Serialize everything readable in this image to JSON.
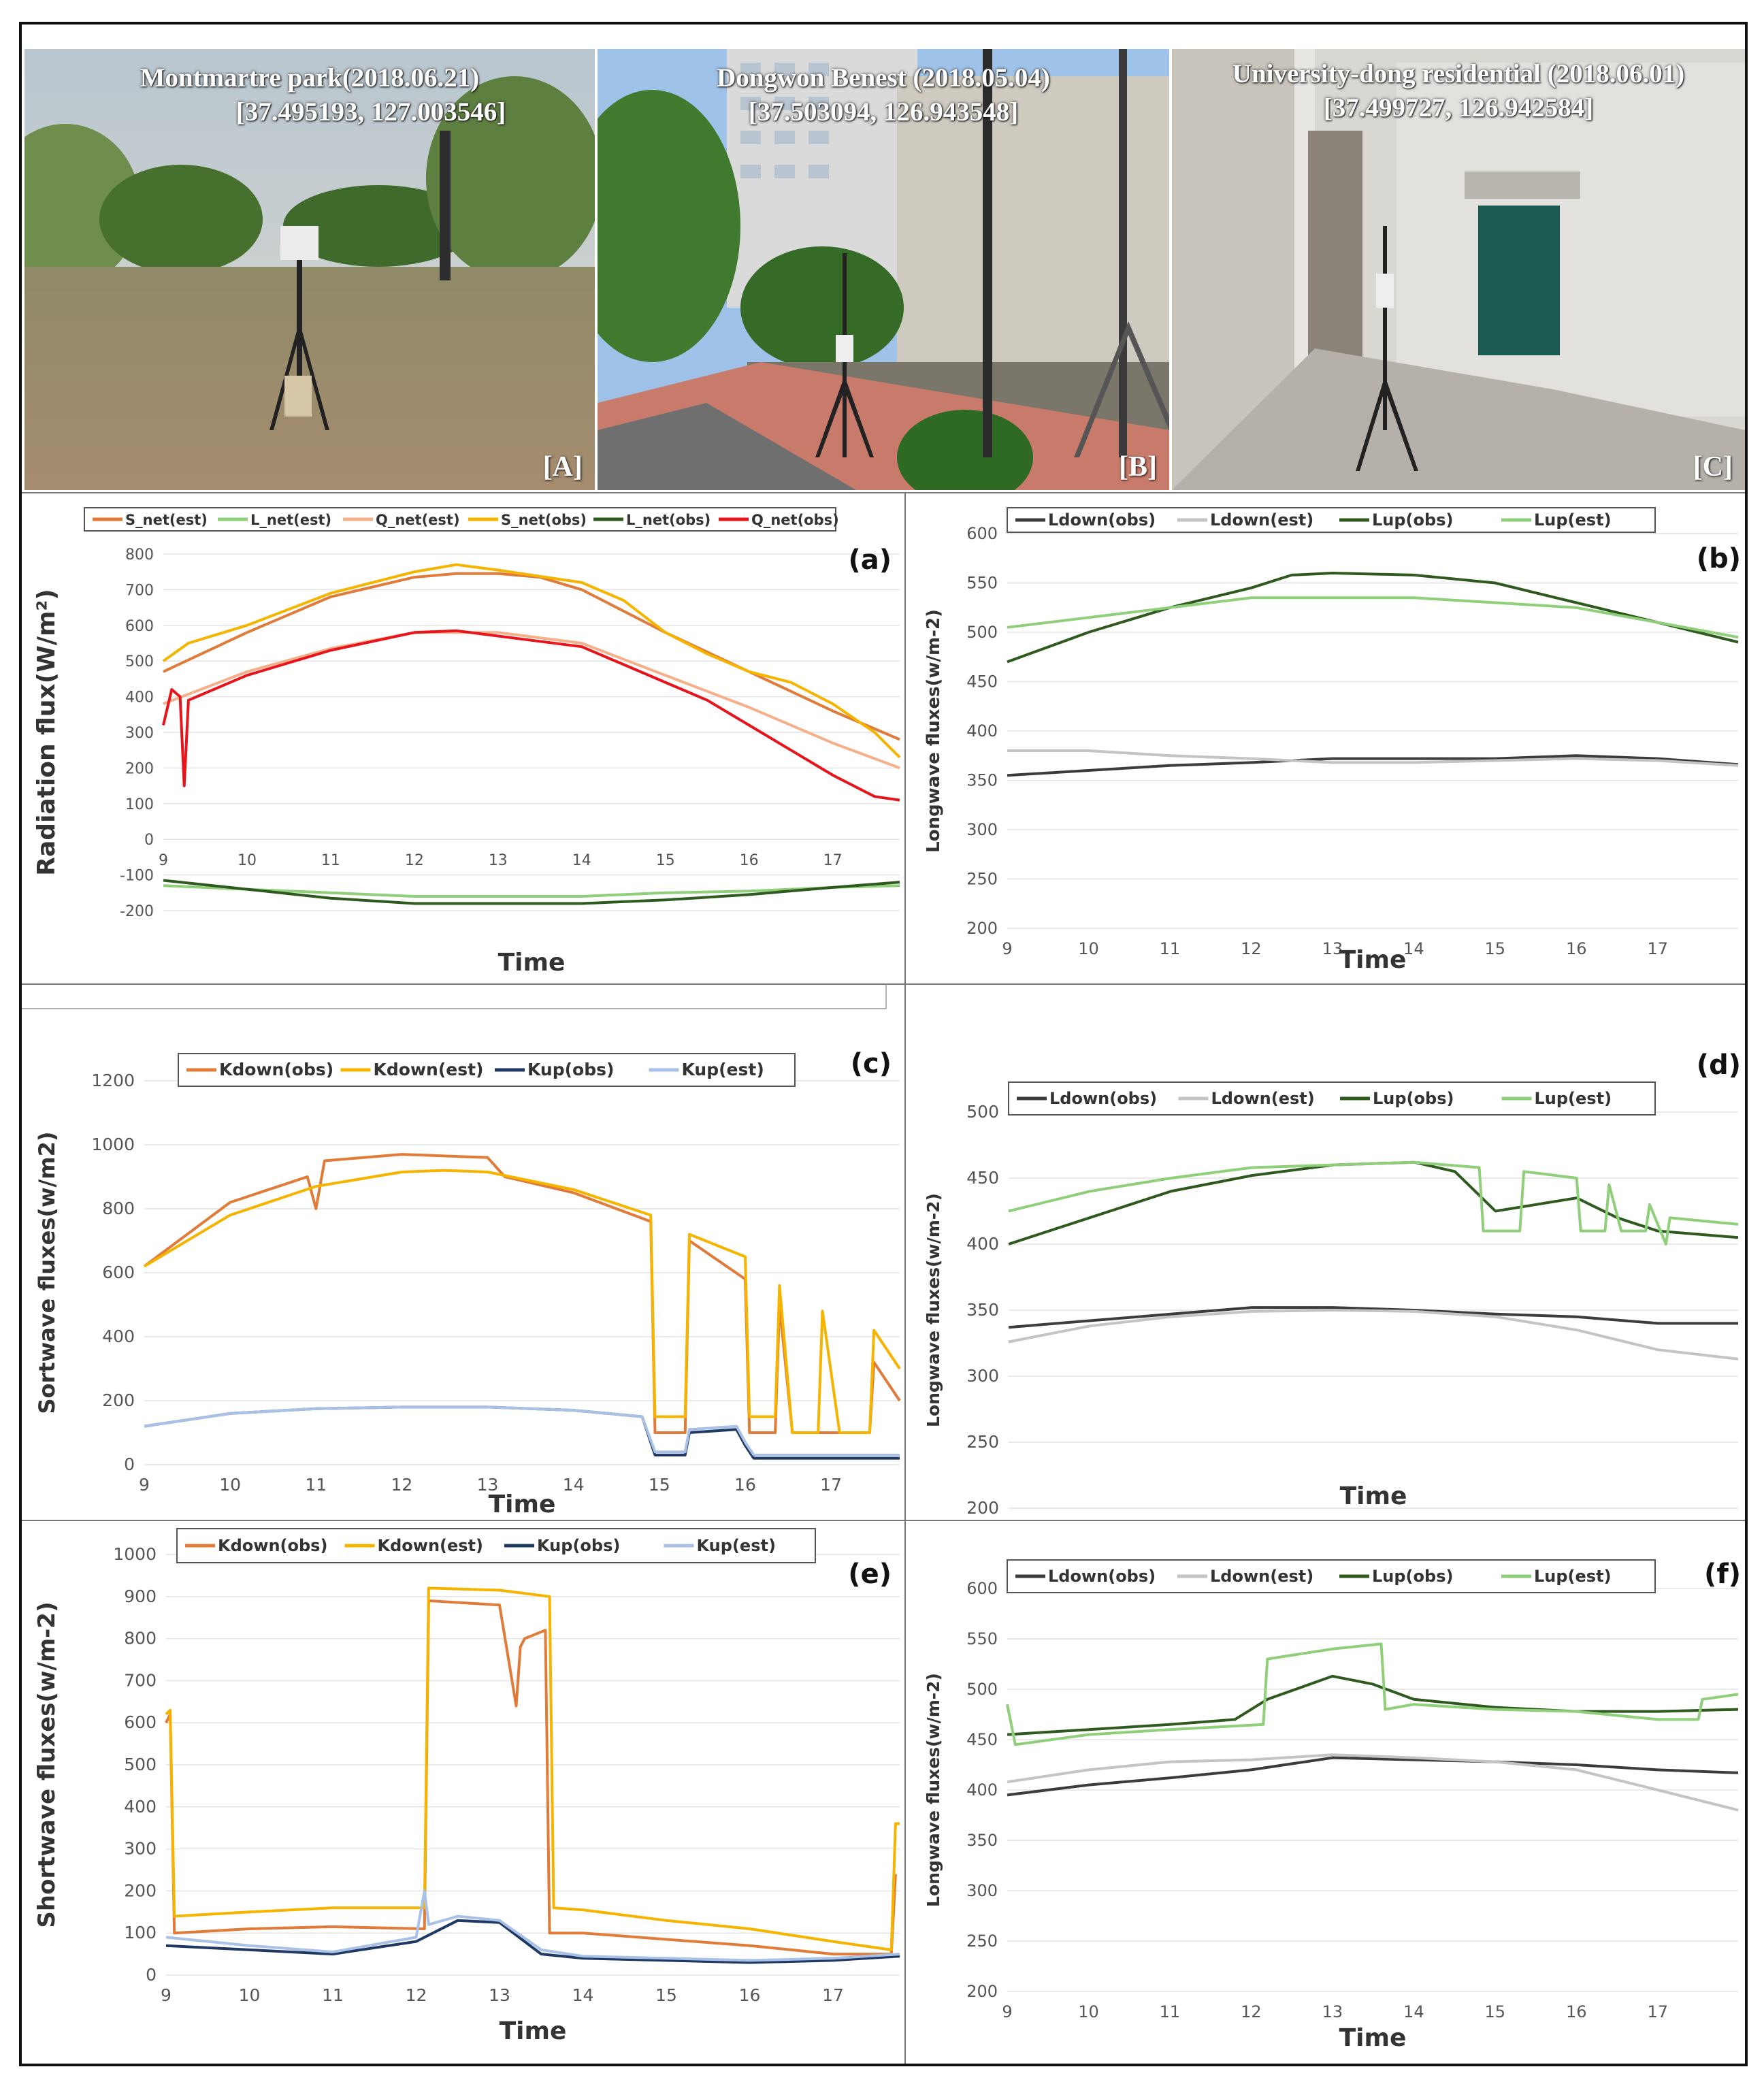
{
  "photos": [
    {
      "id": "A",
      "title_line1": "Montmartre park(2018.06.21)",
      "title_line2": "[37.495193, 127.003546]",
      "tag": "[A]"
    },
    {
      "id": "B",
      "title_line1": "Dongwon Benest (2018.05.04)",
      "title_line2": "[37.503094, 126.943548]",
      "tag": "[B]"
    },
    {
      "id": "C",
      "title_line1": "University-dong residential (2018.06.01)",
      "title_line2": "[37.499727, 126.942584]",
      "tag": "[C]"
    }
  ],
  "colors": {
    "orange": "#e07b39",
    "light_green": "#8fcf7a",
    "peach": "#f5b08a",
    "yellow": "#f5b400",
    "dark_green": "#2e5a1f",
    "red": "#e8141c",
    "dark_gray": "#3c3c3c",
    "light_gray": "#c4c4c4",
    "navy": "#1f3864",
    "light_blue": "#a9c1e6"
  },
  "chart_data": [
    {
      "id": "a",
      "letter": "(a)",
      "type": "line",
      "ylabel": "Radiation flux(W/m²)",
      "xlabel": "Time",
      "xlim": [
        9,
        17.8
      ],
      "ylim": [
        -200,
        800
      ],
      "xticks": [
        9,
        10,
        11,
        12,
        13,
        14,
        15,
        16,
        17
      ],
      "yticks": [
        -200,
        -100,
        0,
        100,
        200,
        300,
        400,
        500,
        600,
        700,
        800
      ],
      "series": [
        {
          "name": "S_net(est)",
          "color": "#e07b39",
          "x": [
            9,
            10,
            11,
            12,
            12.5,
            13,
            13.5,
            14,
            15,
            16,
            17,
            17.8
          ],
          "y": [
            470,
            580,
            680,
            735,
            745,
            745,
            735,
            700,
            580,
            470,
            360,
            280
          ]
        },
        {
          "name": "L_net(est)",
          "color": "#8fcf7a",
          "x": [
            9,
            10,
            11,
            12,
            13,
            14,
            15,
            16,
            17,
            17.8
          ],
          "y": [
            -130,
            -140,
            -150,
            -160,
            -160,
            -160,
            -150,
            -145,
            -135,
            -130
          ]
        },
        {
          "name": "Q_net(est)",
          "color": "#f5b08a",
          "x": [
            9,
            10,
            11,
            12,
            13,
            14,
            15,
            16,
            17,
            17.8
          ],
          "y": [
            380,
            470,
            535,
            580,
            580,
            550,
            460,
            370,
            270,
            200
          ]
        },
        {
          "name": "S_net(obs)",
          "color": "#f5b400",
          "x": [
            9,
            9.3,
            10,
            11,
            12,
            12.5,
            13,
            14,
            14.5,
            15,
            15.5,
            16,
            16.5,
            17,
            17.5,
            17.8
          ],
          "y": [
            500,
            550,
            600,
            690,
            750,
            770,
            755,
            720,
            670,
            580,
            520,
            470,
            440,
            380,
            300,
            230
          ]
        },
        {
          "name": "L_net(obs)",
          "color": "#2e5a1f",
          "x": [
            9,
            10,
            11,
            12,
            13,
            14,
            15,
            16,
            17,
            17.8
          ],
          "y": [
            -115,
            -140,
            -165,
            -180,
            -180,
            -180,
            -170,
            -155,
            -135,
            -120
          ]
        },
        {
          "name": "Q_net(obs)",
          "color": "#e8141c",
          "x": [
            9,
            9.1,
            9.2,
            9.25,
            9.3,
            10,
            11,
            12,
            12.5,
            13,
            14,
            14.5,
            15,
            15.5,
            16,
            16.5,
            17,
            17.5,
            17.8
          ],
          "y": [
            320,
            420,
            400,
            150,
            390,
            460,
            530,
            580,
            585,
            570,
            540,
            490,
            440,
            390,
            320,
            250,
            180,
            120,
            110
          ]
        }
      ]
    },
    {
      "id": "b",
      "letter": "(b)",
      "type": "line",
      "ylabel": "Longwave fluxes(w/m-2)",
      "xlabel": "Time",
      "xlim": [
        9,
        17.99
      ],
      "ylim": [
        200,
        600
      ],
      "xticks": [
        9,
        10,
        11,
        12,
        13,
        14,
        15,
        16,
        17
      ],
      "yticks": [
        200,
        250,
        300,
        350,
        400,
        450,
        500,
        550,
        600
      ],
      "series": [
        {
          "name": "Ldown(obs)",
          "color": "#3c3c3c",
          "x": [
            9,
            10,
            11,
            12,
            13,
            14,
            15,
            16,
            17,
            17.99
          ],
          "y": [
            355,
            360,
            365,
            368,
            372,
            372,
            372,
            375,
            372,
            366
          ]
        },
        {
          "name": "Ldown(est)",
          "color": "#c4c4c4",
          "x": [
            9,
            10,
            11,
            12,
            13,
            14,
            15,
            16,
            17,
            17.99
          ],
          "y": [
            380,
            380,
            375,
            372,
            368,
            368,
            370,
            372,
            370,
            365
          ]
        },
        {
          "name": "Lup(obs)",
          "color": "#2e5a1f",
          "x": [
            9,
            10,
            11,
            12,
            12.5,
            13,
            14,
            15,
            16,
            17,
            17.99
          ],
          "y": [
            470,
            500,
            525,
            545,
            558,
            560,
            558,
            550,
            530,
            510,
            490
          ]
        },
        {
          "name": "Lup(est)",
          "color": "#8fcf7a",
          "x": [
            9,
            10,
            11,
            12,
            13,
            14,
            15,
            16,
            17,
            17.99
          ],
          "y": [
            505,
            515,
            525,
            535,
            535,
            535,
            530,
            525,
            510,
            495
          ]
        }
      ]
    },
    {
      "id": "c",
      "letter": "(c)",
      "type": "line",
      "ylabel": "Sortwave fluxes(w/m2)",
      "xlabel": "Time",
      "xlim": [
        9,
        17.8
      ],
      "ylim": [
        0,
        1200
      ],
      "xticks": [
        9,
        10,
        11,
        12,
        13,
        14,
        15,
        16,
        17
      ],
      "yticks": [
        0,
        200,
        400,
        600,
        800,
        1000,
        1200
      ],
      "series": [
        {
          "name": "Kdown(obs)",
          "color": "#e07b39",
          "x": [
            9,
            10,
            10.9,
            11,
            11.1,
            12,
            13,
            13.2,
            14,
            14.9,
            14.95,
            15.3,
            15.35,
            16,
            16.05,
            16.35,
            16.4,
            16.55,
            16.6,
            16.85,
            16.9,
            17.1,
            17.15,
            17.45,
            17.5,
            17.8
          ],
          "y": [
            620,
            820,
            900,
            800,
            950,
            970,
            960,
            900,
            850,
            760,
            100,
            100,
            700,
            580,
            100,
            100,
            500,
            100,
            100,
            100,
            100,
            100,
            100,
            100,
            320,
            200
          ]
        },
        {
          "name": "Kdown(est)",
          "color": "#f5b400",
          "x": [
            9,
            10,
            11,
            12,
            12.5,
            13,
            14,
            14.9,
            14.95,
            15.3,
            15.35,
            16,
            16.05,
            16.35,
            16.4,
            16.55,
            16.6,
            16.85,
            16.9,
            17.1,
            17.15,
            17.45,
            17.5,
            17.8
          ],
          "y": [
            620,
            780,
            870,
            915,
            920,
            915,
            860,
            780,
            150,
            150,
            720,
            650,
            150,
            150,
            560,
            100,
            100,
            100,
            480,
            100,
            100,
            100,
            420,
            300
          ]
        },
        {
          "name": "Kup(obs)",
          "color": "#1f3864",
          "x": [
            9,
            10,
            11,
            12,
            13,
            14,
            14.8,
            14.95,
            15.3,
            15.35,
            15.9,
            16,
            16.1,
            17,
            17.8
          ],
          "y": [
            120,
            160,
            175,
            180,
            180,
            170,
            150,
            30,
            30,
            100,
            110,
            60,
            20,
            20,
            20
          ]
        },
        {
          "name": "Kup(est)",
          "color": "#a9c1e6",
          "x": [
            9,
            10,
            11,
            12,
            13,
            14,
            14.8,
            14.95,
            15.3,
            15.35,
            15.9,
            16,
            16.1,
            17,
            17.8
          ],
          "y": [
            120,
            160,
            175,
            180,
            180,
            170,
            150,
            40,
            40,
            110,
            120,
            70,
            30,
            30,
            30
          ]
        }
      ]
    },
    {
      "id": "d",
      "letter": "(d)",
      "type": "line",
      "ylabel": "Longwave fluxes(w/m-2)",
      "xlabel": "Time",
      "xlim": [
        9,
        17.99
      ],
      "ylim": [
        200,
        500
      ],
      "xticks": [
        9,
        10,
        11,
        12,
        13,
        14,
        15,
        16,
        17
      ],
      "yticks": [
        200,
        250,
        300,
        350,
        400,
        450,
        500
      ],
      "series": [
        {
          "name": "Ldown(obs)",
          "color": "#3c3c3c",
          "x": [
            9,
            10,
            11,
            12,
            13,
            14,
            15,
            16,
            17,
            17.99
          ],
          "y": [
            337,
            342,
            347,
            352,
            352,
            350,
            347,
            345,
            340,
            340
          ]
        },
        {
          "name": "Ldown(est)",
          "color": "#c4c4c4",
          "x": [
            9,
            10,
            11,
            12,
            13,
            14,
            15,
            16,
            17,
            17.99
          ],
          "y": [
            326,
            338,
            345,
            349,
            350,
            349,
            345,
            335,
            320,
            313
          ]
        },
        {
          "name": "Lup(obs)",
          "color": "#2e5a1f",
          "x": [
            9,
            10,
            11,
            12,
            13,
            14,
            14.5,
            15,
            15.5,
            16,
            16.5,
            17,
            17.99
          ],
          "y": [
            400,
            420,
            440,
            452,
            460,
            462,
            455,
            425,
            430,
            435,
            420,
            410,
            405
          ]
        },
        {
          "name": "Lup(est)",
          "color": "#8fcf7a",
          "x": [
            9,
            10,
            11,
            12,
            13,
            14,
            14.8,
            14.85,
            15.3,
            15.35,
            16,
            16.05,
            16.35,
            16.4,
            16.55,
            16.6,
            16.85,
            16.9,
            17.1,
            17.15,
            17.99
          ],
          "y": [
            425,
            440,
            450,
            458,
            460,
            462,
            458,
            410,
            410,
            455,
            450,
            410,
            410,
            445,
            410,
            410,
            410,
            430,
            400,
            420,
            415
          ]
        }
      ]
    },
    {
      "id": "e",
      "letter": "(e)",
      "type": "line",
      "ylabel": "Shortwave fluxes(w/m-2)",
      "xlabel": "Time",
      "xlim": [
        9,
        17.8
      ],
      "ylim": [
        0,
        1000
      ],
      "xticks": [
        9,
        10,
        11,
        12,
        13,
        14,
        15,
        16,
        17
      ],
      "yticks": [
        0,
        100,
        200,
        300,
        400,
        500,
        600,
        700,
        800,
        900,
        1000
      ],
      "series": [
        {
          "name": "Kdown(obs)",
          "color": "#e07b39",
          "x": [
            9,
            9.05,
            9.1,
            10,
            11,
            12.1,
            12.15,
            13,
            13.2,
            13.25,
            13.3,
            13.55,
            13.6,
            14,
            15,
            16,
            17,
            17.7,
            17.75
          ],
          "y": [
            600,
            620,
            100,
            110,
            115,
            110,
            890,
            880,
            640,
            780,
            800,
            820,
            100,
            100,
            85,
            70,
            50,
            50,
            240
          ]
        },
        {
          "name": "Kdown(est)",
          "color": "#f5b400",
          "x": [
            9,
            9.05,
            9.1,
            10,
            11,
            12.1,
            12.15,
            13,
            13.6,
            13.65,
            14,
            15,
            16,
            17,
            17.7,
            17.75,
            17.8
          ],
          "y": [
            620,
            630,
            140,
            150,
            160,
            160,
            920,
            915,
            900,
            160,
            155,
            130,
            110,
            80,
            60,
            360,
            360
          ]
        },
        {
          "name": "Kup(obs)",
          "color": "#1f3864",
          "x": [
            9,
            10,
            11,
            12,
            12.5,
            13,
            13.5,
            14,
            15,
            16,
            17,
            17.8
          ],
          "y": [
            70,
            60,
            50,
            80,
            130,
            125,
            50,
            40,
            35,
            30,
            35,
            45
          ]
        },
        {
          "name": "Kup(est)",
          "color": "#a9c1e6",
          "x": [
            9,
            10,
            11,
            12,
            12.1,
            12.15,
            12.5,
            13,
            13.5,
            14,
            15,
            16,
            17,
            17.8
          ],
          "y": [
            90,
            70,
            55,
            90,
            200,
            120,
            140,
            130,
            60,
            45,
            40,
            35,
            40,
            50
          ]
        }
      ]
    },
    {
      "id": "f",
      "letter": "(f)",
      "type": "line",
      "ylabel": "Longwave fluxes(w/m-2)",
      "xlabel": "Time",
      "xlim": [
        9,
        17.99
      ],
      "ylim": [
        200,
        600
      ],
      "xticks": [
        9,
        10,
        11,
        12,
        13,
        14,
        15,
        16,
        17
      ],
      "yticks": [
        200,
        250,
        300,
        350,
        400,
        450,
        500,
        550,
        600
      ],
      "series": [
        {
          "name": "Ldown(obs)",
          "color": "#3c3c3c",
          "x": [
            9,
            10,
            11,
            12,
            13,
            14,
            15,
            16,
            17,
            17.99
          ],
          "y": [
            395,
            405,
            412,
            420,
            432,
            430,
            428,
            425,
            420,
            417
          ]
        },
        {
          "name": "Ldown(est)",
          "color": "#c4c4c4",
          "x": [
            9,
            10,
            11,
            12,
            13,
            14,
            15,
            16,
            17,
            17.99
          ],
          "y": [
            408,
            420,
            428,
            430,
            435,
            432,
            428,
            420,
            400,
            380
          ]
        },
        {
          "name": "Lup(obs)",
          "color": "#2e5a1f",
          "x": [
            9,
            10,
            11,
            11.8,
            12.2,
            13,
            13.5,
            14,
            15,
            16,
            17,
            17.99
          ],
          "y": [
            455,
            460,
            465,
            470,
            490,
            513,
            505,
            490,
            482,
            478,
            478,
            480
          ]
        },
        {
          "name": "Lup(est)",
          "color": "#8fcf7a",
          "x": [
            9,
            9.1,
            10,
            11,
            12.15,
            12.2,
            13,
            13.6,
            13.65,
            14,
            15,
            16,
            17,
            17.5,
            17.55,
            17.99
          ],
          "y": [
            485,
            445,
            455,
            460,
            465,
            530,
            540,
            545,
            480,
            485,
            480,
            478,
            470,
            470,
            490,
            495
          ]
        }
      ]
    }
  ]
}
